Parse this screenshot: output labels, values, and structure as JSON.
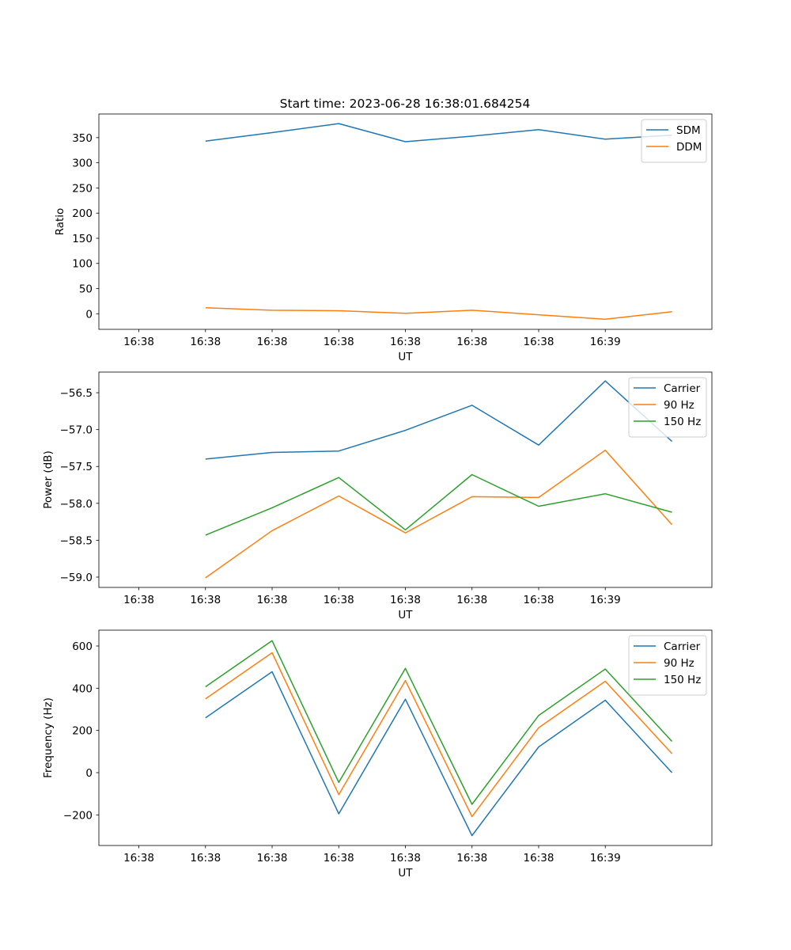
{
  "figure": {
    "title": "Start time: 2023-06-28 16:38:01.684254"
  },
  "chart_data": [
    {
      "type": "line",
      "title": "Start time: 2023-06-28 16:38:01.684254",
      "xlabel": "UT",
      "ylabel": "Ratio",
      "x_tick_labels": [
        "16:38",
        "16:38",
        "16:38",
        "16:38",
        "16:38",
        "16:38",
        "16:38",
        "16:39"
      ],
      "x": [
        1,
        2,
        3,
        4,
        5,
        6,
        7,
        8
      ],
      "xlim": [
        -0.6,
        8.6
      ],
      "ylim": [
        -31,
        397
      ],
      "y_ticks": [
        0,
        50,
        100,
        150,
        200,
        250,
        300,
        350
      ],
      "grid": false,
      "legend_position": "top-right",
      "series": [
        {
          "name": "SDM",
          "color": "#1f77b4",
          "values": [
            343,
            360,
            378,
            342,
            353,
            366,
            347,
            355
          ]
        },
        {
          "name": "DDM",
          "color": "#ff7f0e",
          "values": [
            12,
            7,
            6,
            1,
            7,
            -2,
            -11,
            4
          ]
        }
      ]
    },
    {
      "type": "line",
      "title": "",
      "xlabel": "UT",
      "ylabel": "Power (dB)",
      "x_tick_labels": [
        "16:38",
        "16:38",
        "16:38",
        "16:38",
        "16:38",
        "16:38",
        "16:38",
        "16:39"
      ],
      "x": [
        1,
        2,
        3,
        4,
        5,
        6,
        7,
        8
      ],
      "xlim": [
        -0.6,
        8.6
      ],
      "ylim": [
        -59.14,
        -56.22
      ],
      "y_ticks": [
        -59.0,
        -58.5,
        -58.0,
        -57.5,
        -57.0,
        -56.5
      ],
      "y_tick_labels": [
        "−59.0",
        "−58.5",
        "−58.0",
        "−57.5",
        "−57.0",
        "−56.5"
      ],
      "grid": false,
      "legend_position": "top-right",
      "series": [
        {
          "name": "Carrier",
          "color": "#1f77b4",
          "values": [
            -57.4,
            -57.31,
            -57.29,
            -57.01,
            -56.67,
            -57.21,
            -56.34,
            -57.16
          ]
        },
        {
          "name": "90 Hz",
          "color": "#ff7f0e",
          "values": [
            -59.01,
            -58.37,
            -57.9,
            -58.4,
            -57.91,
            -57.92,
            -57.28,
            -58.29
          ]
        },
        {
          "name": "150 Hz",
          "color": "#2ca02c",
          "values": [
            -58.43,
            -58.06,
            -57.65,
            -58.36,
            -57.61,
            -58.04,
            -57.87,
            -58.12
          ]
        }
      ]
    },
    {
      "type": "line",
      "title": "",
      "xlabel": "UT",
      "ylabel": "Frequency (Hz)",
      "x_tick_labels": [
        "16:38",
        "16:38",
        "16:38",
        "16:38",
        "16:38",
        "16:38",
        "16:38",
        "16:39"
      ],
      "x": [
        1,
        2,
        3,
        4,
        5,
        6,
        7,
        8
      ],
      "xlim": [
        -0.6,
        8.6
      ],
      "ylim": [
        -345,
        675
      ],
      "y_ticks": [
        -200,
        0,
        200,
        400,
        600
      ],
      "y_tick_labels": [
        "−200",
        "0",
        "200",
        "400",
        "600"
      ],
      "grid": false,
      "legend_position": "top-right",
      "series": [
        {
          "name": "Carrier",
          "color": "#1f77b4",
          "values": [
            260,
            478,
            -195,
            348,
            -298,
            122,
            343,
            0
          ]
        },
        {
          "name": "90 Hz",
          "color": "#ff7f0e",
          "values": [
            350,
            568,
            -104,
            436,
            -208,
            213,
            433,
            90
          ]
        },
        {
          "name": "150 Hz",
          "color": "#2ca02c",
          "values": [
            407,
            625,
            -46,
            494,
            -150,
            271,
            491,
            148
          ]
        }
      ]
    }
  ]
}
